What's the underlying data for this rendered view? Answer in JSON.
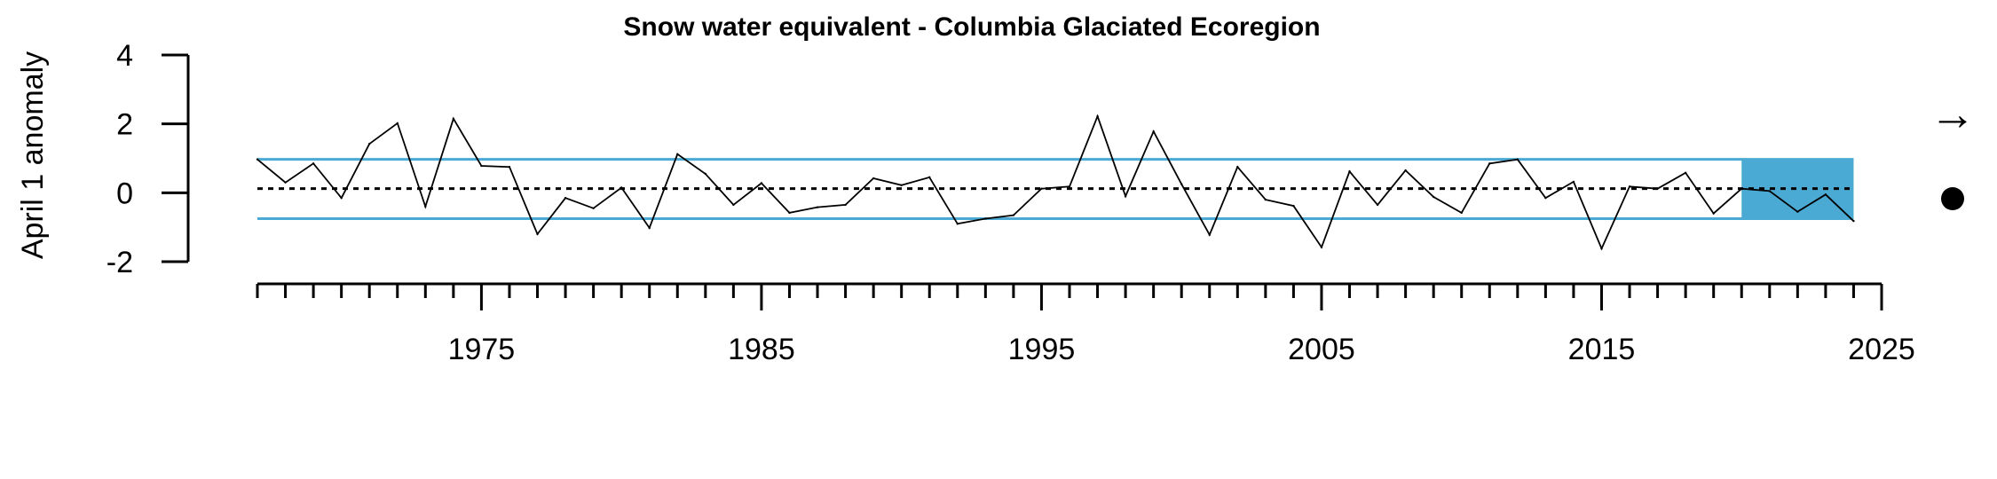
{
  "chart_data": {
    "type": "line",
    "title": "Snow water equivalent - Columbia Glaciated Ecoregion",
    "ylabel": "April 1 anomaly",
    "xlabel": "",
    "ylim": [
      -2,
      4
    ],
    "xlim": [
      1967,
      2025
    ],
    "yticks": [
      4,
      2,
      0,
      -2
    ],
    "xticks_labeled": [
      1975,
      1985,
      1995,
      2005,
      2015,
      2025
    ],
    "x_minor_tick_step": 1,
    "grid": false,
    "colors": {
      "band": "#4aaad4",
      "line": "#000000",
      "mean": "#000000"
    },
    "reference_lines": {
      "upper": 0.97,
      "lower": -0.75,
      "mean": 0.12
    },
    "highlight_period": {
      "start": 2020,
      "end": 2024,
      "upper": 0.97,
      "lower": -0.75
    },
    "series": [
      {
        "x": [
          1967,
          1968,
          1969,
          1970,
          1971,
          1972,
          1973,
          1974,
          1975,
          1976,
          1977,
          1978,
          1979,
          1980,
          1981,
          1982,
          1983,
          1984,
          1985,
          1986,
          1987,
          1988,
          1989,
          1990,
          1991,
          1992,
          1993,
          1994,
          1995,
          1996,
          1997,
          1998,
          1999,
          2000,
          2001,
          2002,
          2003,
          2004,
          2005,
          2006,
          2007,
          2008,
          2009,
          2010,
          2011,
          2012,
          2013,
          2014,
          2015,
          2016,
          2017,
          2018,
          2019,
          2020,
          2021,
          2022,
          2023,
          2024
        ],
        "values": [
          0.97,
          0.3,
          0.85,
          -0.15,
          1.42,
          2.02,
          -0.4,
          2.15,
          0.78,
          0.75,
          -1.2,
          -0.15,
          -0.45,
          0.15,
          -1.02,
          1.12,
          0.55,
          -0.35,
          0.28,
          -0.58,
          -0.42,
          -0.35,
          0.42,
          0.22,
          0.45,
          -0.9,
          -0.75,
          -0.65,
          0.12,
          0.18,
          2.22,
          -0.1,
          1.78,
          0.25,
          -1.22,
          0.75,
          -0.2,
          -0.38,
          -1.58,
          0.62,
          -0.35,
          0.65,
          -0.12,
          -0.58,
          0.85,
          0.97,
          -0.15,
          0.32,
          -1.62,
          0.18,
          0.12,
          0.58,
          -0.6,
          0.12,
          0.05,
          -0.55,
          -0.05,
          -0.82
        ]
      }
    ]
  },
  "legend": {
    "trend_icon": "right-arrow-icon",
    "trend_glyph": "→",
    "status_icon": "filled-circle-icon"
  }
}
